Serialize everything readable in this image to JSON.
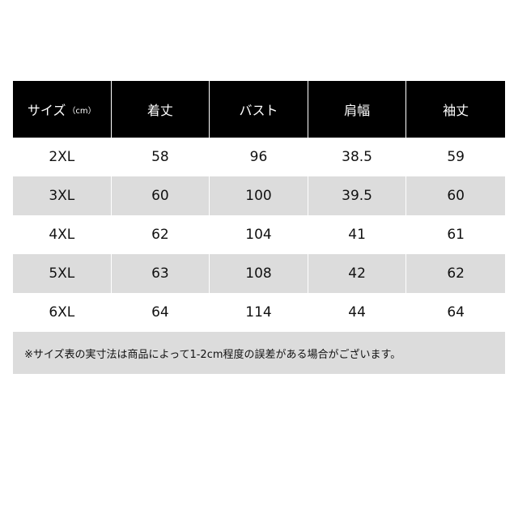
{
  "table": {
    "header": {
      "label": "サイズ",
      "unit": "（cm）",
      "columns": [
        "着丈",
        "バスト",
        "肩幅",
        "袖丈"
      ]
    },
    "rows": [
      [
        "2XL",
        58,
        96,
        38.5,
        59
      ],
      [
        "3XL",
        60,
        100,
        39.5,
        60
      ],
      [
        "4XL",
        62,
        104,
        41,
        61
      ],
      [
        "5XL",
        63,
        108,
        42,
        62
      ],
      [
        "6XL",
        64,
        114,
        44,
        64
      ]
    ],
    "note": "※サイズ表の実寸法は商品によって1-2cm程度の誤差がある場合がございます。"
  }
}
